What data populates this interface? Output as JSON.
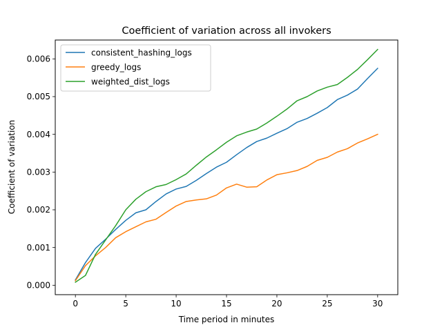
{
  "chart_data": {
    "type": "line",
    "title": "Coefficient of variation across all invokers",
    "xlabel": "Time period in minutes",
    "ylabel": "Coefficient of variation",
    "xlim": [
      -2,
      32
    ],
    "ylim": [
      -0.00025,
      0.0065
    ],
    "xticks": [
      0,
      5,
      10,
      15,
      20,
      25,
      30
    ],
    "xtick_labels": [
      "0",
      "5",
      "10",
      "15",
      "20",
      "25",
      "30"
    ],
    "yticks": [
      0,
      0.001,
      0.002,
      0.003,
      0.004,
      0.005,
      0.006
    ],
    "ytick_labels": [
      "0.000",
      "0.001",
      "0.002",
      "0.003",
      "0.004",
      "0.005",
      "0.006"
    ],
    "grid": false,
    "legend_position": "upper-left",
    "x": [
      0,
      1,
      2,
      3,
      4,
      5,
      6,
      7,
      8,
      9,
      10,
      11,
      12,
      13,
      14,
      15,
      16,
      17,
      18,
      19,
      20,
      21,
      22,
      23,
      24,
      25,
      26,
      27,
      28,
      29,
      30
    ],
    "series": [
      {
        "name": "consistent_hashing_logs",
        "color": "#1f77b4",
        "values": [
          0.00014,
          0.0006,
          0.00098,
          0.00122,
          0.00148,
          0.00172,
          0.00192,
          0.002,
          0.00222,
          0.00242,
          0.00255,
          0.00262,
          0.00278,
          0.00296,
          0.00313,
          0.00326,
          0.00346,
          0.00365,
          0.00381,
          0.0039,
          0.00403,
          0.00415,
          0.00432,
          0.00442,
          0.00456,
          0.00471,
          0.00492,
          0.00504,
          0.0052,
          0.00548,
          0.00575
        ]
      },
      {
        "name": "greedy_logs",
        "color": "#ff7f0e",
        "values": [
          0.00012,
          0.00052,
          0.00078,
          0.001,
          0.00126,
          0.00142,
          0.00155,
          0.00168,
          0.00175,
          0.00193,
          0.0021,
          0.00222,
          0.00226,
          0.00229,
          0.00239,
          0.00258,
          0.00268,
          0.0026,
          0.00261,
          0.00279,
          0.00293,
          0.00298,
          0.00304,
          0.00315,
          0.00331,
          0.00339,
          0.00353,
          0.00362,
          0.00377,
          0.00388,
          0.004
        ]
      },
      {
        "name": "weighted_dist_logs",
        "color": "#2ca02c",
        "values": [
          8e-05,
          0.00026,
          0.00082,
          0.0012,
          0.00158,
          0.002,
          0.00228,
          0.00248,
          0.00261,
          0.00267,
          0.0028,
          0.00295,
          0.00318,
          0.0034,
          0.00359,
          0.00379,
          0.00396,
          0.00406,
          0.00414,
          0.0043,
          0.00448,
          0.00467,
          0.00489,
          0.005,
          0.00515,
          0.00525,
          0.00532,
          0.00551,
          0.00572,
          0.00598,
          0.00625
        ]
      }
    ]
  }
}
